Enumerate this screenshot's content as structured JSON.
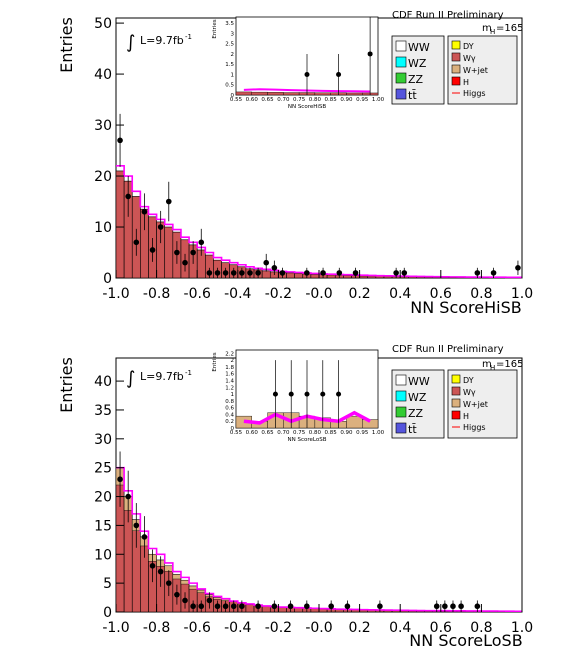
{
  "chart_data": [
    {
      "type": "bar",
      "xlabel": "NN ScoreHiSB",
      "ylabel": "Entries",
      "xlim": [
        -1.0,
        1.0
      ],
      "ylim": [
        0,
        51
      ],
      "x_ticks": [
        "-1.0",
        "-0.8",
        "-0.6",
        "-0.4",
        "-0.2",
        "-0.0",
        "0.2",
        "0.4",
        "0.6",
        "0.8",
        "1.0"
      ],
      "y_ticks": [
        "0",
        "10",
        "20",
        "30",
        "40",
        "50"
      ],
      "experiment": "CDF Run II Preliminary",
      "luminosity": "L=9.7fb",
      "luminosity_sup": "-1",
      "integral_symbol": "∫",
      "mass_label": "m",
      "mass_sub": "H",
      "mass_value": "=165",
      "legend": [
        "WW",
        "WZ",
        "ZZ",
        "tt̄",
        "DY",
        "Wγ",
        "W+jet",
        "H",
        "Higgs"
      ],
      "bin_edges_from": -1.0,
      "bin_width": 0.04,
      "stack_total": [
        21,
        19,
        16,
        13.5,
        12,
        11,
        10,
        9,
        7.5,
        6.5,
        5.5,
        4.5,
        3.5,
        3,
        2.6,
        2.2,
        1.8,
        1.6,
        1.4,
        1.2,
        1.1,
        1.0,
        0.9,
        0.8,
        0.7,
        0.65,
        0.6,
        0.55,
        0.5,
        0.45,
        0.4,
        0.38,
        0.35,
        0.33,
        0.3,
        0.28,
        0.26,
        0.24,
        0.22,
        0.2,
        0.2,
        0.18,
        0.17,
        0.16,
        0.15,
        0.14,
        0.13,
        0.12,
        0.12,
        0.11
      ],
      "higgs": [
        22,
        20,
        17,
        14,
        12.5,
        11.5,
        10.5,
        9.5,
        8,
        7,
        6,
        5,
        4,
        3.5,
        3,
        2.6,
        2.2,
        1.9,
        1.7,
        1.5,
        1.3,
        1.2,
        1.1,
        1.0,
        0.9,
        0.8,
        0.75,
        0.7,
        0.65,
        0.6,
        0.55,
        0.5,
        0.45,
        0.42,
        0.4,
        0.37,
        0.34,
        0.31,
        0.28,
        0.25,
        0.24,
        0.22,
        0.2,
        0.19,
        0.18,
        0.17,
        0.16,
        0.15,
        0.14,
        0.13
      ],
      "data_points": [
        {
          "x": -0.98,
          "y": 27
        },
        {
          "x": -0.94,
          "y": 16
        },
        {
          "x": -0.9,
          "y": 7
        },
        {
          "x": -0.86,
          "y": 13
        },
        {
          "x": -0.82,
          "y": 5.5
        },
        {
          "x": -0.78,
          "y": 10
        },
        {
          "x": -0.74,
          "y": 15
        },
        {
          "x": -0.7,
          "y": 5
        },
        {
          "x": -0.66,
          "y": 3
        },
        {
          "x": -0.62,
          "y": 5
        },
        {
          "x": -0.58,
          "y": 7
        },
        {
          "x": -0.54,
          "y": 1
        },
        {
          "x": -0.5,
          "y": 1
        },
        {
          "x": -0.46,
          "y": 1
        },
        {
          "x": -0.42,
          "y": 1
        },
        {
          "x": -0.38,
          "y": 1
        },
        {
          "x": -0.34,
          "y": 1
        },
        {
          "x": -0.3,
          "y": 1
        },
        {
          "x": -0.26,
          "y": 3
        },
        {
          "x": -0.22,
          "y": 2
        },
        {
          "x": -0.18,
          "y": 1
        },
        {
          "x": -0.06,
          "y": 1
        },
        {
          "x": 0.02,
          "y": 1
        },
        {
          "x": 0.1,
          "y": 1
        },
        {
          "x": 0.18,
          "y": 1
        },
        {
          "x": 0.38,
          "y": 1
        },
        {
          "x": 0.42,
          "y": 1
        },
        {
          "x": 0.78,
          "y": 1
        },
        {
          "x": 0.86,
          "y": 1
        },
        {
          "x": 0.98,
          "y": 2
        }
      ],
      "inset": {
        "xlabel": "NN ScoreHiSB",
        "ylabel": "Entries",
        "xlim": [
          0.55,
          1.0
        ],
        "ylim": [
          0,
          3.8
        ],
        "x_ticks": [
          "0.55",
          "0.60",
          "0.65",
          "0.70",
          "0.75",
          "0.80",
          "0.85",
          "0.90",
          "0.95",
          "1.00"
        ],
        "y_ticks": [
          "0",
          "0.5",
          "1",
          "1.5",
          "2",
          "2.5",
          "3",
          "3.5"
        ],
        "stack_total": [
          0.15,
          0.14,
          0.13,
          0.12,
          0.12,
          0.11,
          0.11,
          0.1,
          0.1
        ],
        "higgs": [
          0.25,
          0.28,
          0.26,
          0.24,
          0.22,
          0.2,
          0.19,
          0.18,
          0.17
        ],
        "data_points": [
          {
            "x": 0.775,
            "y": 1.0
          },
          {
            "x": 0.875,
            "y": 1.0
          },
          {
            "x": 0.975,
            "y": 2.0
          }
        ]
      }
    },
    {
      "type": "bar",
      "xlabel": "NN ScoreLoSB",
      "ylabel": "Entries",
      "xlim": [
        -1.0,
        1.0
      ],
      "ylim": [
        0,
        44
      ],
      "x_ticks": [
        "-1.0",
        "-0.8",
        "-0.6",
        "-0.4",
        "-0.2",
        "-0.0",
        "0.2",
        "0.4",
        "0.6",
        "0.8",
        "1.0"
      ],
      "y_ticks": [
        "0",
        "5",
        "10",
        "15",
        "20",
        "25",
        "30",
        "35",
        "40"
      ],
      "experiment": "CDF Run II Preliminary",
      "luminosity": "L=9.7fb",
      "luminosity_sup": "-1",
      "integral_symbol": "∫",
      "mass_label": "m",
      "mass_sub": "H",
      "mass_value": "=165",
      "legend": [
        "WW",
        "WZ",
        "ZZ",
        "tt̄",
        "DY",
        "Wγ",
        "W+jet",
        "H",
        "Higgs"
      ],
      "bin_edges_from": -1.0,
      "bin_width": 0.04,
      "stack_total": [
        25,
        20,
        16,
        13,
        10,
        9,
        8,
        6.5,
        5.5,
        4.5,
        3.8,
        3,
        2.5,
        2.2,
        1.8,
        1.5,
        1.3,
        1.1,
        1.0,
        0.9,
        0.8,
        0.75,
        0.7,
        0.65,
        0.6,
        0.55,
        0.5,
        0.45,
        0.42,
        0.4,
        0.38,
        0.35,
        0.33,
        0.3,
        0.28,
        0.26,
        0.25,
        0.24,
        0.23,
        0.22,
        0.21,
        0.2,
        0.19,
        0.18,
        0.17,
        0.16,
        0.15,
        0.14,
        0.13,
        0.12
      ],
      "higgs": [
        25,
        21,
        17,
        14,
        11,
        10,
        8.5,
        7,
        6,
        5,
        4,
        3.2,
        2.7,
        2.3,
        1.9,
        1.6,
        1.4,
        1.2,
        1.05,
        0.95,
        0.85,
        0.8,
        0.75,
        0.7,
        0.65,
        0.6,
        0.55,
        0.5,
        0.47,
        0.44,
        0.41,
        0.38,
        0.36,
        0.33,
        0.31,
        0.29,
        0.27,
        0.25,
        0.24,
        0.23,
        0.22,
        0.21,
        0.2,
        0.19,
        0.18,
        0.17,
        0.16,
        0.15,
        0.14,
        0.13
      ],
      "data_points": [
        {
          "x": -0.98,
          "y": 23
        },
        {
          "x": -0.94,
          "y": 20
        },
        {
          "x": -0.9,
          "y": 15
        },
        {
          "x": -0.86,
          "y": 13
        },
        {
          "x": -0.82,
          "y": 8
        },
        {
          "x": -0.78,
          "y": 7
        },
        {
          "x": -0.74,
          "y": 5
        },
        {
          "x": -0.7,
          "y": 3
        },
        {
          "x": -0.66,
          "y": 2
        },
        {
          "x": -0.62,
          "y": 1
        },
        {
          "x": -0.58,
          "y": 1
        },
        {
          "x": -0.54,
          "y": 2
        },
        {
          "x": -0.5,
          "y": 1
        },
        {
          "x": -0.46,
          "y": 1
        },
        {
          "x": -0.42,
          "y": 1
        },
        {
          "x": -0.38,
          "y": 1
        },
        {
          "x": -0.3,
          "y": 1
        },
        {
          "x": -0.22,
          "y": 1
        },
        {
          "x": -0.14,
          "y": 1
        },
        {
          "x": -0.06,
          "y": 1
        },
        {
          "x": 0.06,
          "y": 1
        },
        {
          "x": 0.14,
          "y": 1
        },
        {
          "x": 0.3,
          "y": 1
        },
        {
          "x": 0.58,
          "y": 1
        },
        {
          "x": 0.62,
          "y": 1
        },
        {
          "x": 0.66,
          "y": 1
        },
        {
          "x": 0.7,
          "y": 1
        },
        {
          "x": 0.78,
          "y": 1
        }
      ],
      "inset": {
        "xlabel": "NN ScoreLoSB",
        "ylabel": "Entries",
        "xlim": [
          0.55,
          1.0
        ],
        "ylim": [
          0,
          2.3
        ],
        "x_ticks": [
          "0.55",
          "0.60",
          "0.65",
          "0.70",
          "0.75",
          "0.80",
          "0.85",
          "0.90",
          "0.95",
          "1.00"
        ],
        "y_ticks": [
          "0",
          "0.2",
          "0.4",
          "0.6",
          "0.8",
          "1",
          "1.2",
          "1.4",
          "1.6",
          "1.8",
          "2",
          "2.2"
        ],
        "stack_total": [
          0.35,
          0.2,
          0.45,
          0.45,
          0.35,
          0.3,
          0.2,
          0.35,
          0.25
        ],
        "higgs": [
          0.2,
          0.15,
          0.4,
          0.2,
          0.35,
          0.25,
          0.2,
          0.45,
          0.2
        ],
        "data_points": [
          {
            "x": 0.675,
            "y": 1.0
          },
          {
            "x": 0.725,
            "y": 1.0
          },
          {
            "x": 0.775,
            "y": 1.0
          },
          {
            "x": 0.825,
            "y": 1.0
          },
          {
            "x": 0.875,
            "y": 1.0
          }
        ]
      }
    }
  ],
  "colors": {
    "WW": "#ffffff",
    "WZ": "#00ffff",
    "ZZ": "#33cc33",
    "tt": "#5555dd",
    "DY": "#ffff00",
    "Wg": "#cc5555",
    "Wjet": "#dbb07e",
    "H": "#ff0000",
    "Higgs": "#ff00ff",
    "data": "#000000"
  }
}
